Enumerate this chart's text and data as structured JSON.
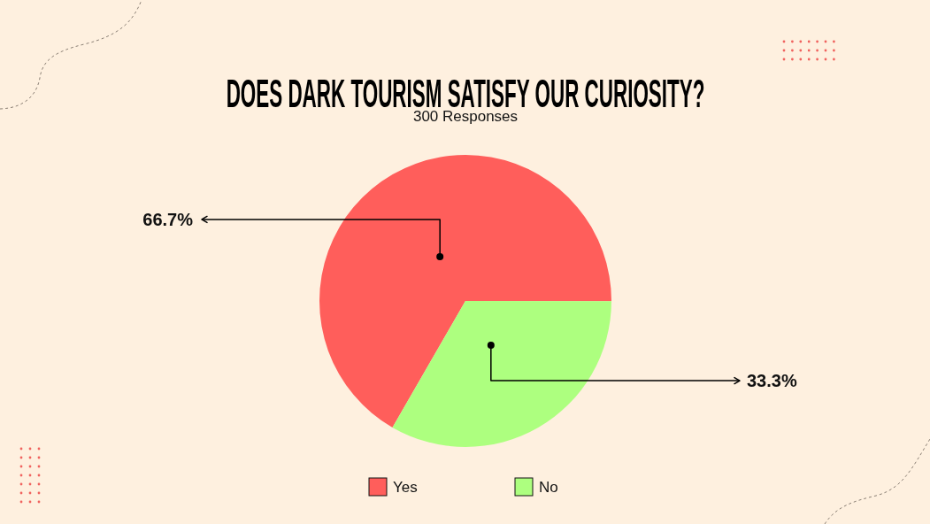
{
  "chart_data": {
    "type": "pie",
    "title": "DOES DARK TOURISM SATISFY OUR CURIOSITY?",
    "subtitle": "300 Responses",
    "categories": [
      "Yes",
      "No"
    ],
    "values": [
      66.7,
      33.3
    ],
    "colors": [
      "#ff5e5b",
      "#adff7f"
    ],
    "value_labels": [
      "66.7%",
      "33.3%"
    ],
    "legend": "bottom"
  }
}
